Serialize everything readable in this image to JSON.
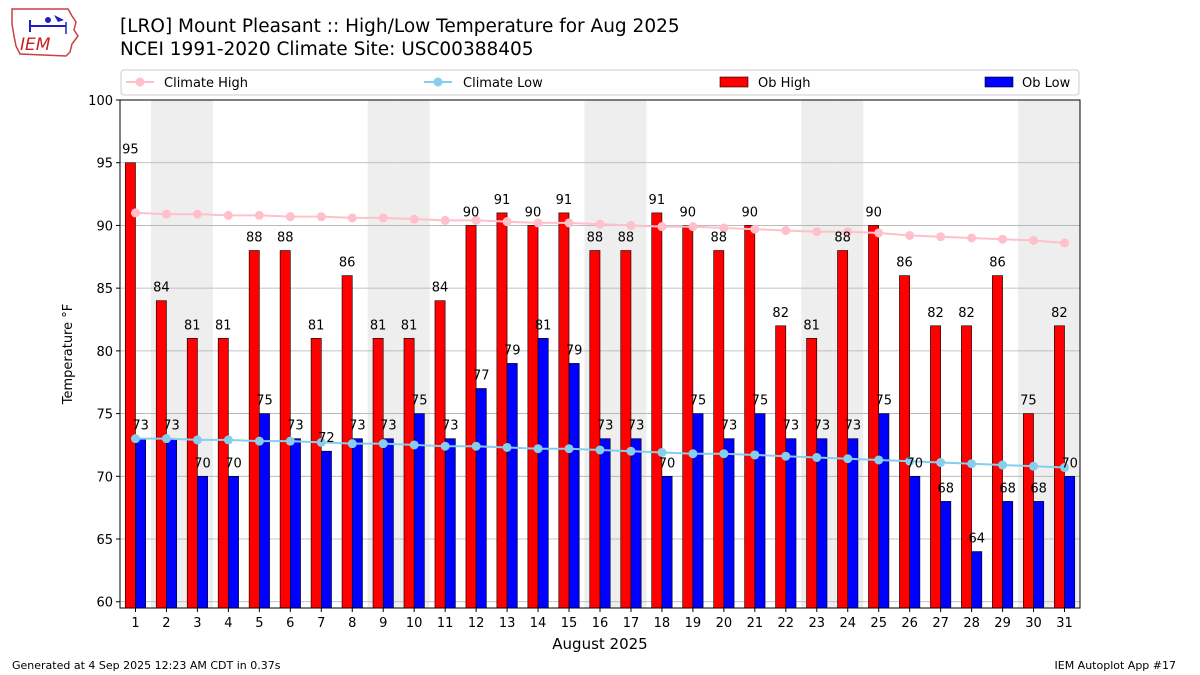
{
  "header": {
    "title": "[LRO] Mount Pleasant :: High/Low Temperature for Aug 2025",
    "subtitle": "NCEI 1991-2020 Climate Site: USC00388405"
  },
  "logo": {
    "text": "IEM",
    "icon": "iem-iowa-logo-icon"
  },
  "footer": {
    "left": "Generated at 4 Sep 2025 12:23 AM CDT in 0.37s",
    "right": "IEM Autoplot App #17"
  },
  "colors": {
    "ob_high": "#ff0000",
    "ob_low": "#0000ff",
    "climate_high": "#ffc0cb",
    "climate_low": "#87ceeb",
    "weekend_band": "#eeeeee",
    "grid": "#b0b0b0"
  },
  "chart_data": {
    "type": "bar",
    "xlabel": "August 2025",
    "ylabel": "Temperature °F",
    "ylim": [
      59.5,
      100
    ],
    "yticks": [
      60,
      65,
      70,
      75,
      80,
      85,
      90,
      95,
      100
    ],
    "grid": "horizontal",
    "legend_placement": "top",
    "categories": [
      1,
      2,
      3,
      4,
      5,
      6,
      7,
      8,
      9,
      10,
      11,
      12,
      13,
      14,
      15,
      16,
      17,
      18,
      19,
      20,
      21,
      22,
      23,
      24,
      25,
      26,
      27,
      28,
      29,
      30,
      31
    ],
    "shaded_days": [
      2,
      3,
      9,
      10,
      16,
      17,
      23,
      24,
      30,
      31
    ],
    "series": [
      {
        "name": "Climate High",
        "kind": "line",
        "values": [
          91.0,
          90.9,
          90.9,
          90.8,
          90.8,
          90.7,
          90.7,
          90.6,
          90.6,
          90.5,
          90.4,
          90.4,
          90.3,
          90.2,
          90.2,
          90.1,
          90.0,
          89.9,
          89.9,
          89.8,
          89.7,
          89.6,
          89.5,
          89.5,
          89.4,
          89.2,
          89.1,
          89.0,
          88.9,
          88.8,
          88.6
        ]
      },
      {
        "name": "Climate Low",
        "kind": "line",
        "values": [
          73.0,
          73.0,
          72.9,
          72.9,
          72.8,
          72.8,
          72.7,
          72.6,
          72.6,
          72.5,
          72.4,
          72.4,
          72.3,
          72.2,
          72.2,
          72.1,
          72.0,
          71.9,
          71.8,
          71.8,
          71.7,
          71.6,
          71.5,
          71.4,
          71.3,
          71.2,
          71.1,
          71.0,
          70.9,
          70.8,
          70.7
        ]
      },
      {
        "name": "Ob High",
        "kind": "bar",
        "values": [
          95,
          84,
          81,
          81,
          88,
          88,
          81,
          86,
          81,
          81,
          84,
          90,
          91,
          90,
          91,
          88,
          88,
          91,
          90,
          88,
          90,
          82,
          81,
          88,
          90,
          86,
          82,
          82,
          86,
          75,
          82
        ]
      },
      {
        "name": "Ob Low",
        "kind": "bar",
        "values": [
          73,
          73,
          70,
          70,
          75,
          73,
          72,
          73,
          73,
          75,
          73,
          77,
          79,
          81,
          79,
          73,
          73,
          70,
          75,
          73,
          75,
          73,
          73,
          73,
          75,
          70,
          68,
          64,
          68,
          68,
          70
        ]
      }
    ]
  }
}
